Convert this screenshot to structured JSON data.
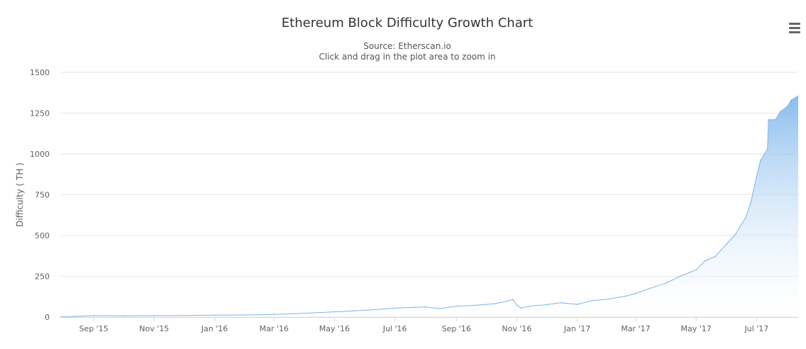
{
  "chart_data": {
    "type": "area",
    "title": "Ethereum Block Difficulty Growth Chart",
    "subtitle": "Source: Etherscan.io",
    "hint": "Click and drag in the plot area to zoom in",
    "ylabel": "Difficulty ( TH )",
    "xlabel": "",
    "ylim": [
      0,
      1500
    ],
    "xlim": [
      "2015-07-30",
      "2017-08-12"
    ],
    "y_ticks": [
      0,
      250,
      500,
      750,
      1000,
      1250,
      1500
    ],
    "x_ticks": [
      {
        "date": "2015-09-01",
        "label": "Sep '15"
      },
      {
        "date": "2015-11-01",
        "label": "Nov '15"
      },
      {
        "date": "2016-01-01",
        "label": "Jan '16"
      },
      {
        "date": "2016-03-01",
        "label": "Mar '16"
      },
      {
        "date": "2016-05-01",
        "label": "May '16"
      },
      {
        "date": "2016-07-01",
        "label": "Jul '16"
      },
      {
        "date": "2016-09-01",
        "label": "Sep '16"
      },
      {
        "date": "2016-11-01",
        "label": "Nov '16"
      },
      {
        "date": "2017-01-01",
        "label": "Jan '17"
      },
      {
        "date": "2017-03-01",
        "label": "Mar '17"
      },
      {
        "date": "2017-05-01",
        "label": "May '17"
      },
      {
        "date": "2017-07-01",
        "label": "Jul '17"
      }
    ],
    "grid": true,
    "legend": "none",
    "colors": {
      "line": "#7cb5ec",
      "fill_top": "#7cb5ec",
      "fill_bottom": "#ffffff",
      "grid": "#e6e6e6"
    },
    "series": [
      {
        "x": [
          "2015-07-30",
          "2015-08-15",
          "2015-09-01",
          "2015-10-01",
          "2015-11-01",
          "2015-12-01",
          "2016-01-01",
          "2016-02-01",
          "2016-03-01",
          "2016-03-20",
          "2016-04-10",
          "2016-05-01",
          "2016-05-20",
          "2016-06-10",
          "2016-07-01",
          "2016-07-20",
          "2016-08-01",
          "2016-08-15",
          "2016-09-01",
          "2016-09-20",
          "2016-10-10",
          "2016-10-22",
          "2016-10-28",
          "2016-11-01",
          "2016-11-05",
          "2016-11-15",
          "2016-12-01",
          "2016-12-15",
          "2017-01-01",
          "2017-01-15",
          "2017-02-01",
          "2017-02-20",
          "2017-03-01",
          "2017-03-15",
          "2017-04-01",
          "2017-04-15",
          "2017-05-01",
          "2017-05-10",
          "2017-05-20",
          "2017-06-01",
          "2017-06-10",
          "2017-06-20",
          "2017-06-25",
          "2017-07-01",
          "2017-07-05",
          "2017-07-12",
          "2017-07-13",
          "2017-07-20",
          "2017-07-25",
          "2017-08-01",
          "2017-08-05",
          "2017-08-12"
        ],
        "y": [
          1,
          5,
          9,
          8,
          9,
          10,
          12,
          13,
          16,
          21,
          26,
          32,
          38,
          45,
          55,
          60,
          62,
          52,
          66,
          72,
          82,
          98,
          108,
          72,
          55,
          68,
          76,
          88,
          78,
          100,
          110,
          130,
          145,
          175,
          210,
          250,
          290,
          345,
          370,
          450,
          510,
          610,
          700,
          860,
          960,
          1030,
          1210,
          1210,
          1260,
          1290,
          1330,
          1355
        ]
      }
    ]
  }
}
